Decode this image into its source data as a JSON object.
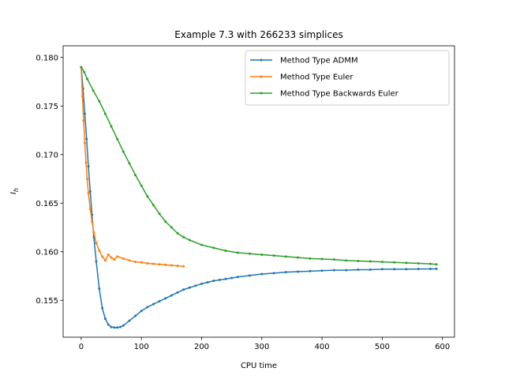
{
  "chart_data": {
    "type": "line",
    "title": "Example 7.3 with 266233 simplices",
    "xlabel": "CPU time",
    "ylabel": "I_h",
    "xlim": [
      -30,
      620
    ],
    "ylim": [
      0.1512,
      0.1812
    ],
    "xticks": [
      0,
      100,
      200,
      300,
      400,
      500,
      600
    ],
    "xtick_labels": [
      "0",
      "100",
      "200",
      "300",
      "400",
      "500",
      "600"
    ],
    "yticks": [
      0.155,
      0.16,
      0.165,
      0.17,
      0.175,
      0.18
    ],
    "ytick_labels": [
      "0.155",
      "0.160",
      "0.165",
      "0.170",
      "0.175",
      "0.180"
    ],
    "grid": false,
    "legend_position": "upper right",
    "series": [
      {
        "name": "Method Type ADMM",
        "color": "#1f77b4",
        "x": [
          0,
          3,
          6,
          9,
          12,
          15,
          18,
          21,
          25,
          30,
          35,
          40,
          45,
          50,
          55,
          60,
          65,
          70,
          80,
          90,
          100,
          110,
          120,
          130,
          140,
          150,
          160,
          170,
          180,
          190,
          200,
          210,
          220,
          230,
          240,
          250,
          260,
          280,
          300,
          320,
          340,
          360,
          380,
          400,
          420,
          440,
          460,
          480,
          500,
          520,
          540,
          560,
          580,
          590
        ],
        "y": [
          0.179,
          0.1768,
          0.1742,
          0.1716,
          0.1688,
          0.1662,
          0.1638,
          0.1615,
          0.159,
          0.1562,
          0.1542,
          0.1531,
          0.1525,
          0.15225,
          0.1522,
          0.1522,
          0.15225,
          0.1524,
          0.1529,
          0.1534,
          0.1539,
          0.1543,
          0.1546,
          0.1549,
          0.1552,
          0.1555,
          0.1558,
          0.1561,
          0.1563,
          0.1565,
          0.1567,
          0.15685,
          0.157,
          0.1571,
          0.1572,
          0.1573,
          0.1574,
          0.15755,
          0.1577,
          0.1578,
          0.1579,
          0.15795,
          0.158,
          0.15805,
          0.1581,
          0.1581,
          0.15815,
          0.15815,
          0.1582,
          0.1582,
          0.1582,
          0.15822,
          0.15823,
          0.15823
        ]
      },
      {
        "name": "Method Type Euler",
        "color": "#ff7f0e",
        "x": [
          0,
          2,
          4,
          6,
          8,
          10,
          12,
          15,
          18,
          21,
          25,
          30,
          35,
          40,
          45,
          50,
          55,
          60,
          70,
          80,
          90,
          100,
          110,
          120,
          130,
          140,
          150,
          160,
          170
        ],
        "y": [
          0.179,
          0.176,
          0.1735,
          0.1712,
          0.1692,
          0.1675,
          0.166,
          0.1644,
          0.1631,
          0.162,
          0.1609,
          0.1601,
          0.1595,
          0.1591,
          0.1597,
          0.1594,
          0.1592,
          0.1595,
          0.1593,
          0.1591,
          0.15895,
          0.1589,
          0.1588,
          0.15875,
          0.1587,
          0.15865,
          0.1586,
          0.15855,
          0.1585
        ]
      },
      {
        "name": "Method Type Backwards Euler",
        "color": "#2ca02c",
        "x": [
          0,
          5,
          10,
          20,
          30,
          40,
          50,
          60,
          70,
          80,
          90,
          100,
          110,
          120,
          130,
          140,
          150,
          160,
          170,
          180,
          200,
          220,
          240,
          260,
          280,
          300,
          320,
          340,
          360,
          380,
          400,
          420,
          440,
          460,
          480,
          500,
          520,
          540,
          560,
          580,
          590
        ],
        "y": [
          0.179,
          0.1785,
          0.1778,
          0.1766,
          0.1755,
          0.1742,
          0.1729,
          0.1716,
          0.1703,
          0.1691,
          0.1679,
          0.1668,
          0.1657,
          0.1648,
          0.1639,
          0.1631,
          0.1625,
          0.1619,
          0.1615,
          0.1612,
          0.1607,
          0.1604,
          0.1601,
          0.1599,
          0.1598,
          0.1597,
          0.1596,
          0.1595,
          0.1594,
          0.1593,
          0.15925,
          0.1592,
          0.1591,
          0.15905,
          0.159,
          0.15895,
          0.1589,
          0.15885,
          0.1588,
          0.15875,
          0.1587
        ]
      }
    ]
  }
}
